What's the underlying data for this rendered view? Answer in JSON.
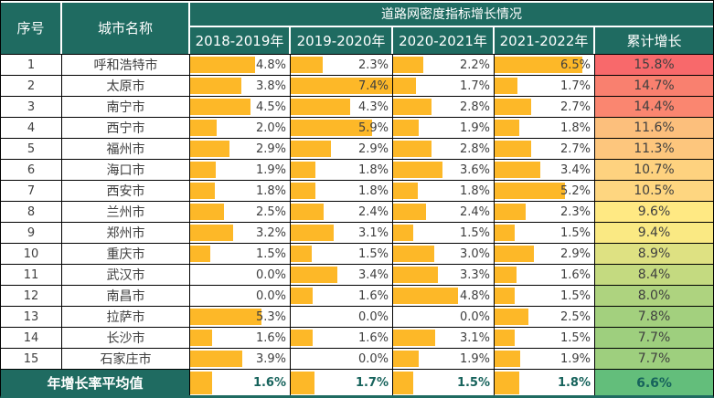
{
  "colors": {
    "header_teal": "#1F6B61",
    "bar_orange": "#FDB828",
    "body_text": "#3F3F3F",
    "footer_value_text": "#17635C",
    "grid_line": "#000000",
    "scale_max_red": "#F8696B",
    "scale_mid_yellow": "#FFEB84",
    "scale_min_green": "#63BE7B"
  },
  "chart_data": {
    "type": "table",
    "title": "道路网密度指标增长情况",
    "unit": "%",
    "bar_max_percent": 7.4,
    "headers": {
      "seq": "序号",
      "city": "城市名称",
      "group_title": "道路网密度指标增长情况",
      "years": [
        "2018-2019年",
        "2019-2020年",
        "2020-2021年",
        "2021-2022年"
      ],
      "cumulative": "累计增长"
    },
    "rows": [
      {
        "seq": "1",
        "city": "呼和浩特市",
        "values": [
          4.8,
          2.3,
          2.2,
          6.5
        ],
        "cumulative": 15.8,
        "cumulative_color": "#F8696B"
      },
      {
        "seq": "2",
        "city": "太原市",
        "values": [
          3.8,
          7.4,
          1.7,
          1.7
        ],
        "cumulative": 14.7,
        "cumulative_color": "#F9806F"
      },
      {
        "seq": "3",
        "city": "南宁市",
        "values": [
          4.5,
          4.3,
          2.8,
          2.7
        ],
        "cumulative": 14.4,
        "cumulative_color": "#FA8670"
      },
      {
        "seq": "4",
        "city": "西宁市",
        "values": [
          2.0,
          5.9,
          1.9,
          1.8
        ],
        "cumulative": 11.6,
        "cumulative_color": "#FCBF7C"
      },
      {
        "seq": "5",
        "city": "福州市",
        "values": [
          2.9,
          2.9,
          2.8,
          2.7
        ],
        "cumulative": 11.3,
        "cumulative_color": "#FDC67D"
      },
      {
        "seq": "6",
        "city": "海口市",
        "values": [
          1.9,
          1.8,
          3.6,
          3.4
        ],
        "cumulative": 10.7,
        "cumulative_color": "#FED27F"
      },
      {
        "seq": "7",
        "city": "西安市",
        "values": [
          1.8,
          1.8,
          1.8,
          5.2
        ],
        "cumulative": 10.5,
        "cumulative_color": "#FED680"
      },
      {
        "seq": "8",
        "city": "兰州市",
        "values": [
          2.5,
          2.4,
          2.4,
          2.3
        ],
        "cumulative": 9.6,
        "cumulative_color": "#FFE983"
      },
      {
        "seq": "9",
        "city": "郑州市",
        "values": [
          3.2,
          3.1,
          1.5,
          1.5
        ],
        "cumulative": 9.4,
        "cumulative_color": "#FAE983"
      },
      {
        "seq": "10",
        "city": "重庆市",
        "values": [
          1.5,
          1.5,
          3.0,
          2.9
        ],
        "cumulative": 8.9,
        "cumulative_color": "#DEE182"
      },
      {
        "seq": "11",
        "city": "武汉市",
        "values": [
          0.0,
          3.4,
          3.3,
          1.6
        ],
        "cumulative": 8.4,
        "cumulative_color": "#C4DA80"
      },
      {
        "seq": "12",
        "city": "南昌市",
        "values": [
          0.0,
          1.6,
          4.8,
          1.5
        ],
        "cumulative": 8.0,
        "cumulative_color": "#AED37F"
      },
      {
        "seq": "13",
        "city": "拉萨市",
        "values": [
          5.3,
          0.0,
          0.0,
          2.5
        ],
        "cumulative": 7.8,
        "cumulative_color": "#A3D07E"
      },
      {
        "seq": "14",
        "city": "长沙市",
        "values": [
          1.6,
          1.6,
          3.1,
          1.5
        ],
        "cumulative": 7.7,
        "cumulative_color": "#9ECF7E"
      },
      {
        "seq": "15",
        "city": "石家庄市",
        "values": [
          3.9,
          0.0,
          1.9,
          1.9
        ],
        "cumulative": 7.7,
        "cumulative_color": "#9ECF7E"
      }
    ],
    "footer": {
      "label": "年增长率平均值",
      "values": [
        1.6,
        1.7,
        1.5,
        1.8
      ],
      "cumulative": 6.6,
      "cumulative_color": "#63BE7B"
    }
  }
}
